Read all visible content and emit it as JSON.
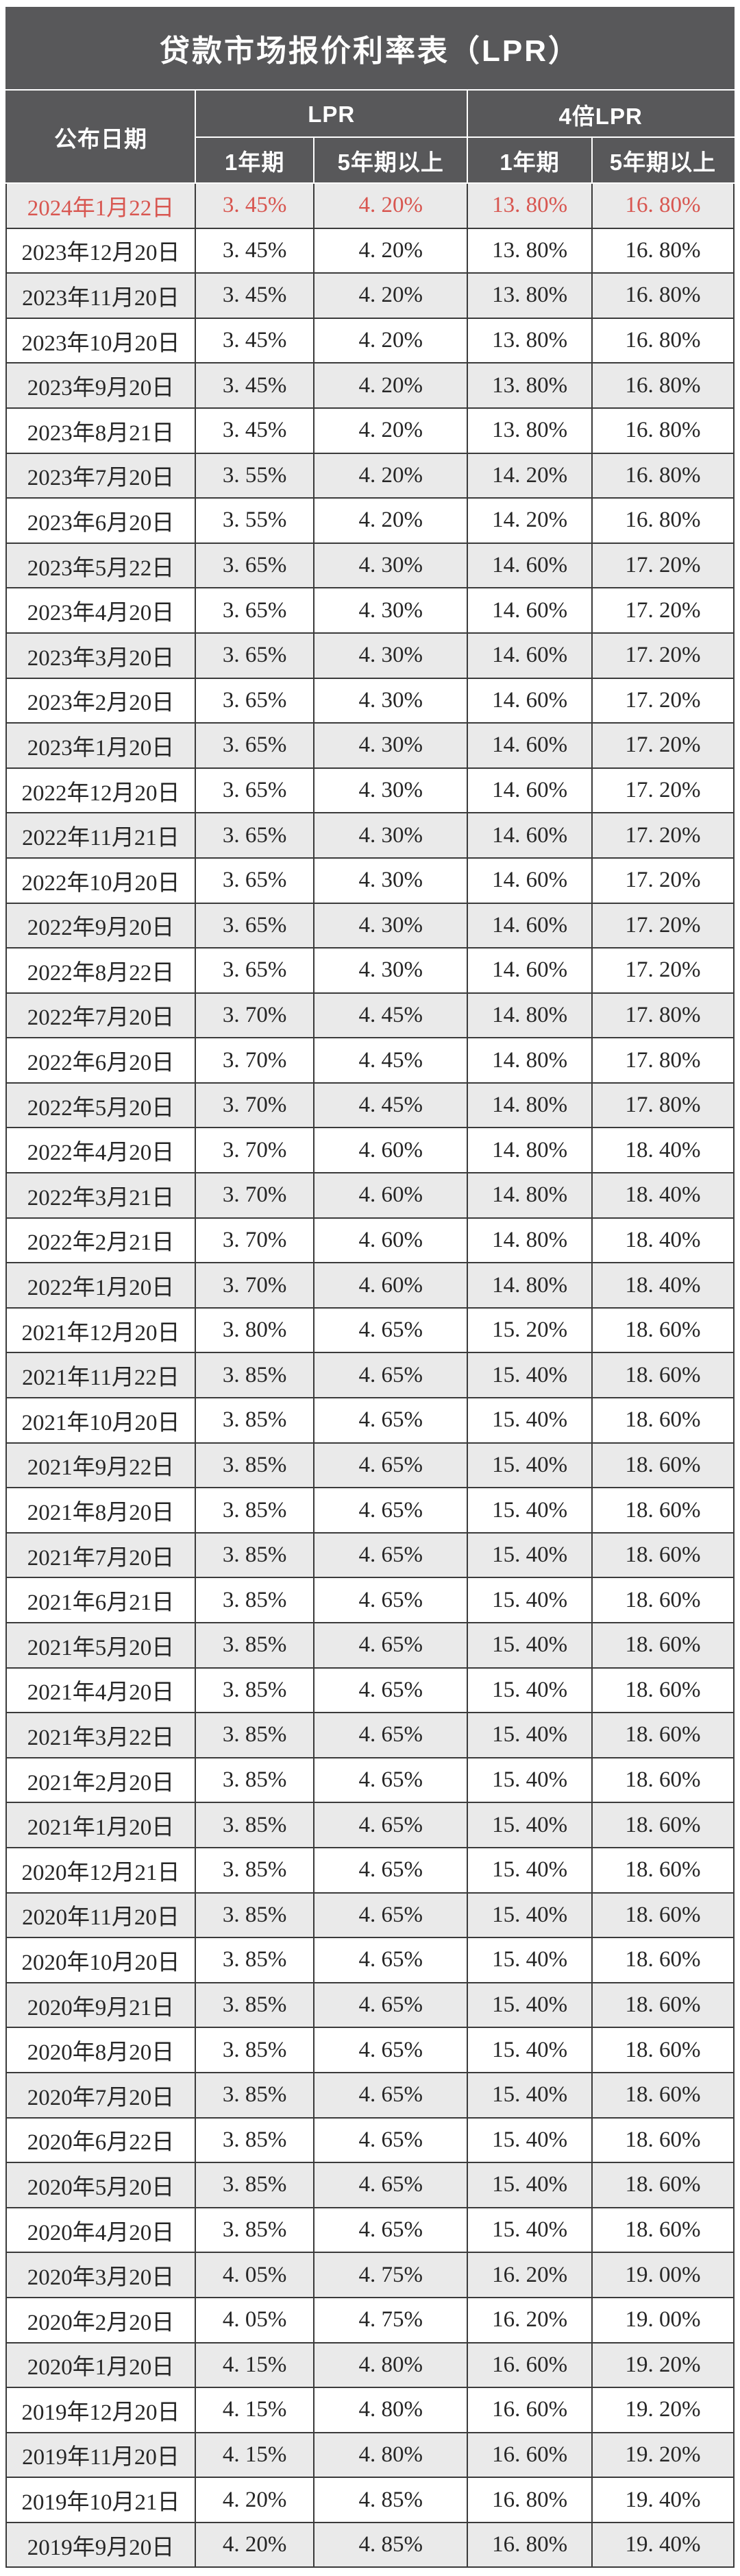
{
  "title": "贷款市场报价利率表（LPR）",
  "table": {
    "headers": {
      "publish_date": "公布日期",
      "group_lpr": "LPR",
      "group_lpr4": "4倍LPR",
      "sub_1y": "1年期",
      "sub_5y": "5年期以上"
    },
    "highlight_row": 0,
    "rows": [
      [
        "2024年1月22日",
        "3. 45%",
        "4. 20%",
        "13. 80%",
        "16. 80%"
      ],
      [
        "2023年12月20日",
        "3. 45%",
        "4. 20%",
        "13. 80%",
        "16. 80%"
      ],
      [
        "2023年11月20日",
        "3. 45%",
        "4. 20%",
        "13. 80%",
        "16. 80%"
      ],
      [
        "2023年10月20日",
        "3. 45%",
        "4. 20%",
        "13. 80%",
        "16. 80%"
      ],
      [
        "2023年9月20日",
        "3. 45%",
        "4. 20%",
        "13. 80%",
        "16. 80%"
      ],
      [
        "2023年8月21日",
        "3. 45%",
        "4. 20%",
        "13. 80%",
        "16. 80%"
      ],
      [
        "2023年7月20日",
        "3. 55%",
        "4. 20%",
        "14. 20%",
        "16. 80%"
      ],
      [
        "2023年6月20日",
        "3. 55%",
        "4. 20%",
        "14. 20%",
        "16. 80%"
      ],
      [
        "2023年5月22日",
        "3. 65%",
        "4. 30%",
        "14. 60%",
        "17. 20%"
      ],
      [
        "2023年4月20日",
        "3. 65%",
        "4. 30%",
        "14. 60%",
        "17. 20%"
      ],
      [
        "2023年3月20日",
        "3. 65%",
        "4. 30%",
        "14. 60%",
        "17. 20%"
      ],
      [
        "2023年2月20日",
        "3. 65%",
        "4. 30%",
        "14. 60%",
        "17. 20%"
      ],
      [
        "2023年1月20日",
        "3. 65%",
        "4. 30%",
        "14. 60%",
        "17. 20%"
      ],
      [
        "2022年12月20日",
        "3. 65%",
        "4. 30%",
        "14. 60%",
        "17. 20%"
      ],
      [
        "2022年11月21日",
        "3. 65%",
        "4. 30%",
        "14. 60%",
        "17. 20%"
      ],
      [
        "2022年10月20日",
        "3. 65%",
        "4. 30%",
        "14. 60%",
        "17. 20%"
      ],
      [
        "2022年9月20日",
        "3. 65%",
        "4. 30%",
        "14. 60%",
        "17. 20%"
      ],
      [
        "2022年8月22日",
        "3. 65%",
        "4. 30%",
        "14. 60%",
        "17. 20%"
      ],
      [
        "2022年7月20日",
        "3. 70%",
        "4. 45%",
        "14. 80%",
        "17. 80%"
      ],
      [
        "2022年6月20日",
        "3. 70%",
        "4. 45%",
        "14. 80%",
        "17. 80%"
      ],
      [
        "2022年5月20日",
        "3. 70%",
        "4. 45%",
        "14. 80%",
        "17. 80%"
      ],
      [
        "2022年4月20日",
        "3. 70%",
        "4. 60%",
        "14. 80%",
        "18. 40%"
      ],
      [
        "2022年3月21日",
        "3. 70%",
        "4. 60%",
        "14. 80%",
        "18. 40%"
      ],
      [
        "2022年2月21日",
        "3. 70%",
        "4. 60%",
        "14. 80%",
        "18. 40%"
      ],
      [
        "2022年1月20日",
        "3. 70%",
        "4. 60%",
        "14. 80%",
        "18. 40%"
      ],
      [
        "2021年12月20日",
        "3. 80%",
        "4. 65%",
        "15. 20%",
        "18. 60%"
      ],
      [
        "2021年11月22日",
        "3. 85%",
        "4. 65%",
        "15. 40%",
        "18. 60%"
      ],
      [
        "2021年10月20日",
        "3. 85%",
        "4. 65%",
        "15. 40%",
        "18. 60%"
      ],
      [
        "2021年9月22日",
        "3. 85%",
        "4. 65%",
        "15. 40%",
        "18. 60%"
      ],
      [
        "2021年8月20日",
        "3. 85%",
        "4. 65%",
        "15. 40%",
        "18. 60%"
      ],
      [
        "2021年7月20日",
        "3. 85%",
        "4. 65%",
        "15. 40%",
        "18. 60%"
      ],
      [
        "2021年6月21日",
        "3. 85%",
        "4. 65%",
        "15. 40%",
        "18. 60%"
      ],
      [
        "2021年5月20日",
        "3. 85%",
        "4. 65%",
        "15. 40%",
        "18. 60%"
      ],
      [
        "2021年4月20日",
        "3. 85%",
        "4. 65%",
        "15. 40%",
        "18. 60%"
      ],
      [
        "2021年3月22日",
        "3. 85%",
        "4. 65%",
        "15. 40%",
        "18. 60%"
      ],
      [
        "2021年2月20日",
        "3. 85%",
        "4. 65%",
        "15. 40%",
        "18. 60%"
      ],
      [
        "2021年1月20日",
        "3. 85%",
        "4. 65%",
        "15. 40%",
        "18. 60%"
      ],
      [
        "2020年12月21日",
        "3. 85%",
        "4. 65%",
        "15. 40%",
        "18. 60%"
      ],
      [
        "2020年11月20日",
        "3. 85%",
        "4. 65%",
        "15. 40%",
        "18. 60%"
      ],
      [
        "2020年10月20日",
        "3. 85%",
        "4. 65%",
        "15. 40%",
        "18. 60%"
      ],
      [
        "2020年9月21日",
        "3. 85%",
        "4. 65%",
        "15. 40%",
        "18. 60%"
      ],
      [
        "2020年8月20日",
        "3. 85%",
        "4. 65%",
        "15. 40%",
        "18. 60%"
      ],
      [
        "2020年7月20日",
        "3. 85%",
        "4. 65%",
        "15. 40%",
        "18. 60%"
      ],
      [
        "2020年6月22日",
        "3. 85%",
        "4. 65%",
        "15. 40%",
        "18. 60%"
      ],
      [
        "2020年5月20日",
        "3. 85%",
        "4. 65%",
        "15. 40%",
        "18. 60%"
      ],
      [
        "2020年4月20日",
        "3. 85%",
        "4. 65%",
        "15. 40%",
        "18. 60%"
      ],
      [
        "2020年3月20日",
        "4. 05%",
        "4. 75%",
        "16. 20%",
        "19. 00%"
      ],
      [
        "2020年2月20日",
        "4. 05%",
        "4. 75%",
        "16. 20%",
        "19. 00%"
      ],
      [
        "2020年1月20日",
        "4. 15%",
        "4. 80%",
        "16. 60%",
        "19. 20%"
      ],
      [
        "2019年12月20日",
        "4. 15%",
        "4. 80%",
        "16. 60%",
        "19. 20%"
      ],
      [
        "2019年11月20日",
        "4. 15%",
        "4. 80%",
        "16. 60%",
        "19. 20%"
      ],
      [
        "2019年10月21日",
        "4. 20%",
        "4. 85%",
        "16. 80%",
        "19. 40%"
      ],
      [
        "2019年9月20日",
        "4. 20%",
        "4. 85%",
        "16. 80%",
        "19. 40%"
      ]
    ]
  },
  "colors": {
    "header_bg": "#58585A",
    "header_text": "#FFFFFF",
    "row_alt_bg": "#EAEAEA",
    "row_bg": "#FFFFFF",
    "highlight_color": "#D85650",
    "text_color": "#262626",
    "border_dark": "#3B3B3B"
  },
  "chart_data": {
    "type": "table",
    "title": "贷款市场报价利率表（LPR）",
    "columns": [
      "公布日期",
      "LPR 1年期",
      "LPR 5年期以上",
      "4倍LPR 1年期",
      "4倍LPR 5年期以上"
    ],
    "unit": "%",
    "highlighted_row": "2024年1月22日",
    "rows": [
      [
        "2024年1月22日",
        3.45,
        4.2,
        13.8,
        16.8
      ],
      [
        "2023年12月20日",
        3.45,
        4.2,
        13.8,
        16.8
      ],
      [
        "2023年11月20日",
        3.45,
        4.2,
        13.8,
        16.8
      ],
      [
        "2023年10月20日",
        3.45,
        4.2,
        13.8,
        16.8
      ],
      [
        "2023年9月20日",
        3.45,
        4.2,
        13.8,
        16.8
      ],
      [
        "2023年8月21日",
        3.45,
        4.2,
        13.8,
        16.8
      ],
      [
        "2023年7月20日",
        3.55,
        4.2,
        14.2,
        16.8
      ],
      [
        "2023年6月20日",
        3.55,
        4.2,
        14.2,
        16.8
      ],
      [
        "2023年5月22日",
        3.65,
        4.3,
        14.6,
        17.2
      ],
      [
        "2023年4月20日",
        3.65,
        4.3,
        14.6,
        17.2
      ],
      [
        "2023年3月20日",
        3.65,
        4.3,
        14.6,
        17.2
      ],
      [
        "2023年2月20日",
        3.65,
        4.3,
        14.6,
        17.2
      ],
      [
        "2023年1月20日",
        3.65,
        4.3,
        14.6,
        17.2
      ],
      [
        "2022年12月20日",
        3.65,
        4.3,
        14.6,
        17.2
      ],
      [
        "2022年11月21日",
        3.65,
        4.3,
        14.6,
        17.2
      ],
      [
        "2022年10月20日",
        3.65,
        4.3,
        14.6,
        17.2
      ],
      [
        "2022年9月20日",
        3.65,
        4.3,
        14.6,
        17.2
      ],
      [
        "2022年8月22日",
        3.65,
        4.3,
        14.6,
        17.2
      ],
      [
        "2022年7月20日",
        3.7,
        4.45,
        14.8,
        17.8
      ],
      [
        "2022年6月20日",
        3.7,
        4.45,
        14.8,
        17.8
      ],
      [
        "2022年5月20日",
        3.7,
        4.45,
        14.8,
        17.8
      ],
      [
        "2022年4月20日",
        3.7,
        4.6,
        14.8,
        18.4
      ],
      [
        "2022年3月21日",
        3.7,
        4.6,
        14.8,
        18.4
      ],
      [
        "2022年2月21日",
        3.7,
        4.6,
        14.8,
        18.4
      ],
      [
        "2022年1月20日",
        3.7,
        4.6,
        14.8,
        18.4
      ],
      [
        "2021年12月20日",
        3.8,
        4.65,
        15.2,
        18.6
      ],
      [
        "2021年11月22日",
        3.85,
        4.65,
        15.4,
        18.6
      ],
      [
        "2021年10月20日",
        3.85,
        4.65,
        15.4,
        18.6
      ],
      [
        "2021年9月22日",
        3.85,
        4.65,
        15.4,
        18.6
      ],
      [
        "2021年8月20日",
        3.85,
        4.65,
        15.4,
        18.6
      ],
      [
        "2021年7月20日",
        3.85,
        4.65,
        15.4,
        18.6
      ],
      [
        "2021年6月21日",
        3.85,
        4.65,
        15.4,
        18.6
      ],
      [
        "2021年5月20日",
        3.85,
        4.65,
        15.4,
        18.6
      ],
      [
        "2021年4月20日",
        3.85,
        4.65,
        15.4,
        18.6
      ],
      [
        "2021年3月22日",
        3.85,
        4.65,
        15.4,
        18.6
      ],
      [
        "2021年2月20日",
        3.85,
        4.65,
        15.4,
        18.6
      ],
      [
        "2021年1月20日",
        3.85,
        4.65,
        15.4,
        18.6
      ],
      [
        "2020年12月21日",
        3.85,
        4.65,
        15.4,
        18.6
      ],
      [
        "2020年11月20日",
        3.85,
        4.65,
        15.4,
        18.6
      ],
      [
        "2020年10月20日",
        3.85,
        4.65,
        15.4,
        18.6
      ],
      [
        "2020年9月21日",
        3.85,
        4.65,
        15.4,
        18.6
      ],
      [
        "2020年8月20日",
        3.85,
        4.65,
        15.4,
        18.6
      ],
      [
        "2020年7月20日",
        3.85,
        4.65,
        15.4,
        18.6
      ],
      [
        "2020年6月22日",
        3.85,
        4.65,
        15.4,
        18.6
      ],
      [
        "2020年5月20日",
        3.85,
        4.65,
        15.4,
        18.6
      ],
      [
        "2020年4月20日",
        3.85,
        4.65,
        15.4,
        18.6
      ],
      [
        "2020年3月20日",
        4.05,
        4.75,
        16.2,
        19.0
      ],
      [
        "2020年2月20日",
        4.05,
        4.75,
        16.2,
        19.0
      ],
      [
        "2020年1月20日",
        4.15,
        4.8,
        16.6,
        19.2
      ],
      [
        "2019年12月20日",
        4.15,
        4.8,
        16.6,
        19.2
      ],
      [
        "2019年11月20日",
        4.15,
        4.8,
        16.6,
        19.2
      ],
      [
        "2019年10月21日",
        4.2,
        4.85,
        16.8,
        19.4
      ],
      [
        "2019年9月20日",
        4.2,
        4.85,
        16.8,
        19.4
      ]
    ]
  }
}
